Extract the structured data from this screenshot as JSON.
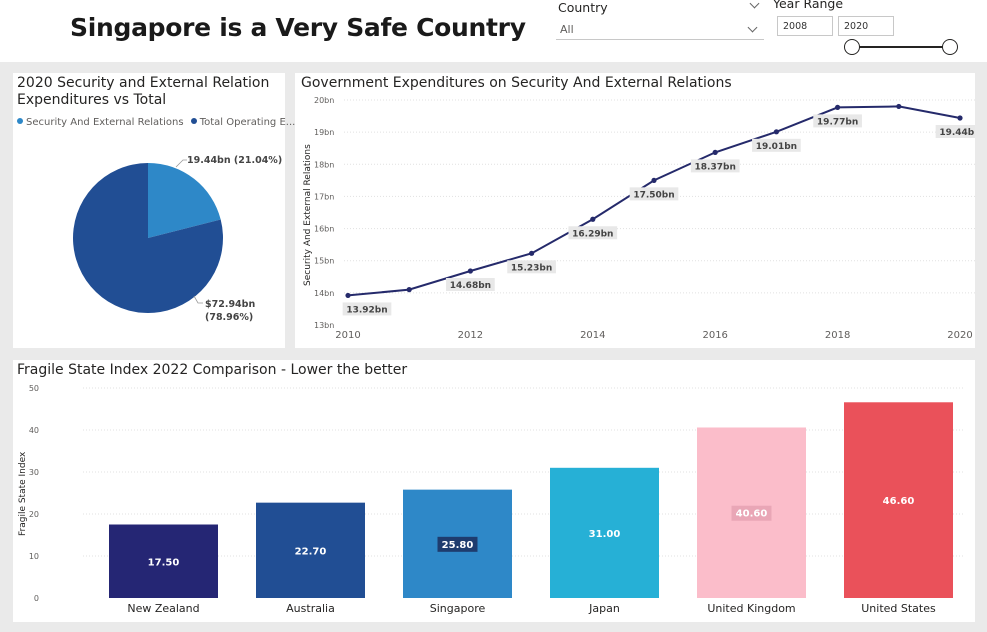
{
  "header": {
    "title": "Singapore is a Very Safe Country",
    "country_label": "Country",
    "country_value": "All",
    "year_range_label": "Year Range",
    "year_from": "2008",
    "year_to": "2020"
  },
  "chart_data": [
    {
      "type": "pie",
      "title": "2020 Security and External Relation Expenditures vs Total",
      "legend_position": "top",
      "slices": [
        {
          "name": "Security And External Relations",
          "legend_text": "Security And External Relations",
          "value": 19.44,
          "percent": 21.04,
          "label": "19.44bn (21.04%)",
          "color": "#2e88c8"
        },
        {
          "name": "Total Operating Expenditure",
          "legend_text": "Total Operating E...",
          "value": 72.94,
          "percent": 78.96,
          "label_line1": "$72.94bn",
          "label_line2": "(78.96%)",
          "color": "#214e94"
        }
      ]
    },
    {
      "type": "line",
      "title": "Government Expenditures on Security And External Relations",
      "xlabel": "",
      "ylabel": "Security And External Relations",
      "x": [
        2010,
        2011,
        2012,
        2013,
        2014,
        2015,
        2016,
        2017,
        2018,
        2019,
        2020
      ],
      "y": [
        13.92,
        14.1,
        14.68,
        15.23,
        16.29,
        17.5,
        18.37,
        19.01,
        19.77,
        19.8,
        19.44
      ],
      "data_labels": [
        "13.92bn",
        "",
        "14.68bn",
        "15.23bn",
        "16.29bn",
        "17.50bn",
        "18.37bn",
        "19.01bn",
        "19.77bn",
        "",
        "19.44bn"
      ],
      "x_ticks": [
        "2010",
        "2012",
        "2014",
        "2016",
        "2018",
        "2020"
      ],
      "y_ticks": [
        "13bn",
        "14bn",
        "15bn",
        "16bn",
        "17bn",
        "18bn",
        "19bn",
        "20bn"
      ],
      "ylim": [
        13,
        20
      ],
      "xlim": [
        2010,
        2020
      ],
      "grid": true,
      "color": "#252a6b"
    },
    {
      "type": "bar",
      "title": "Fragile State Index 2022 Comparison - Lower the better",
      "xlabel": "",
      "ylabel": "Fragile State Index",
      "categories": [
        "New Zealand",
        "Australia",
        "Singapore",
        "Japan",
        "United Kingdom",
        "United States"
      ],
      "values": [
        17.5,
        22.7,
        25.8,
        31.0,
        40.6,
        46.6
      ],
      "value_labels": [
        "17.50",
        "22.70",
        "25.80",
        "31.00",
        "40.60",
        "46.60"
      ],
      "colors": [
        "#252674",
        "#214e94",
        "#2e88c8",
        "#26b0d6",
        "#fbbdca",
        "#ea515a"
      ],
      "y_ticks": [
        "0",
        "10",
        "20",
        "30",
        "40",
        "50"
      ],
      "ylim": [
        0,
        50
      ],
      "grid": true
    }
  ]
}
